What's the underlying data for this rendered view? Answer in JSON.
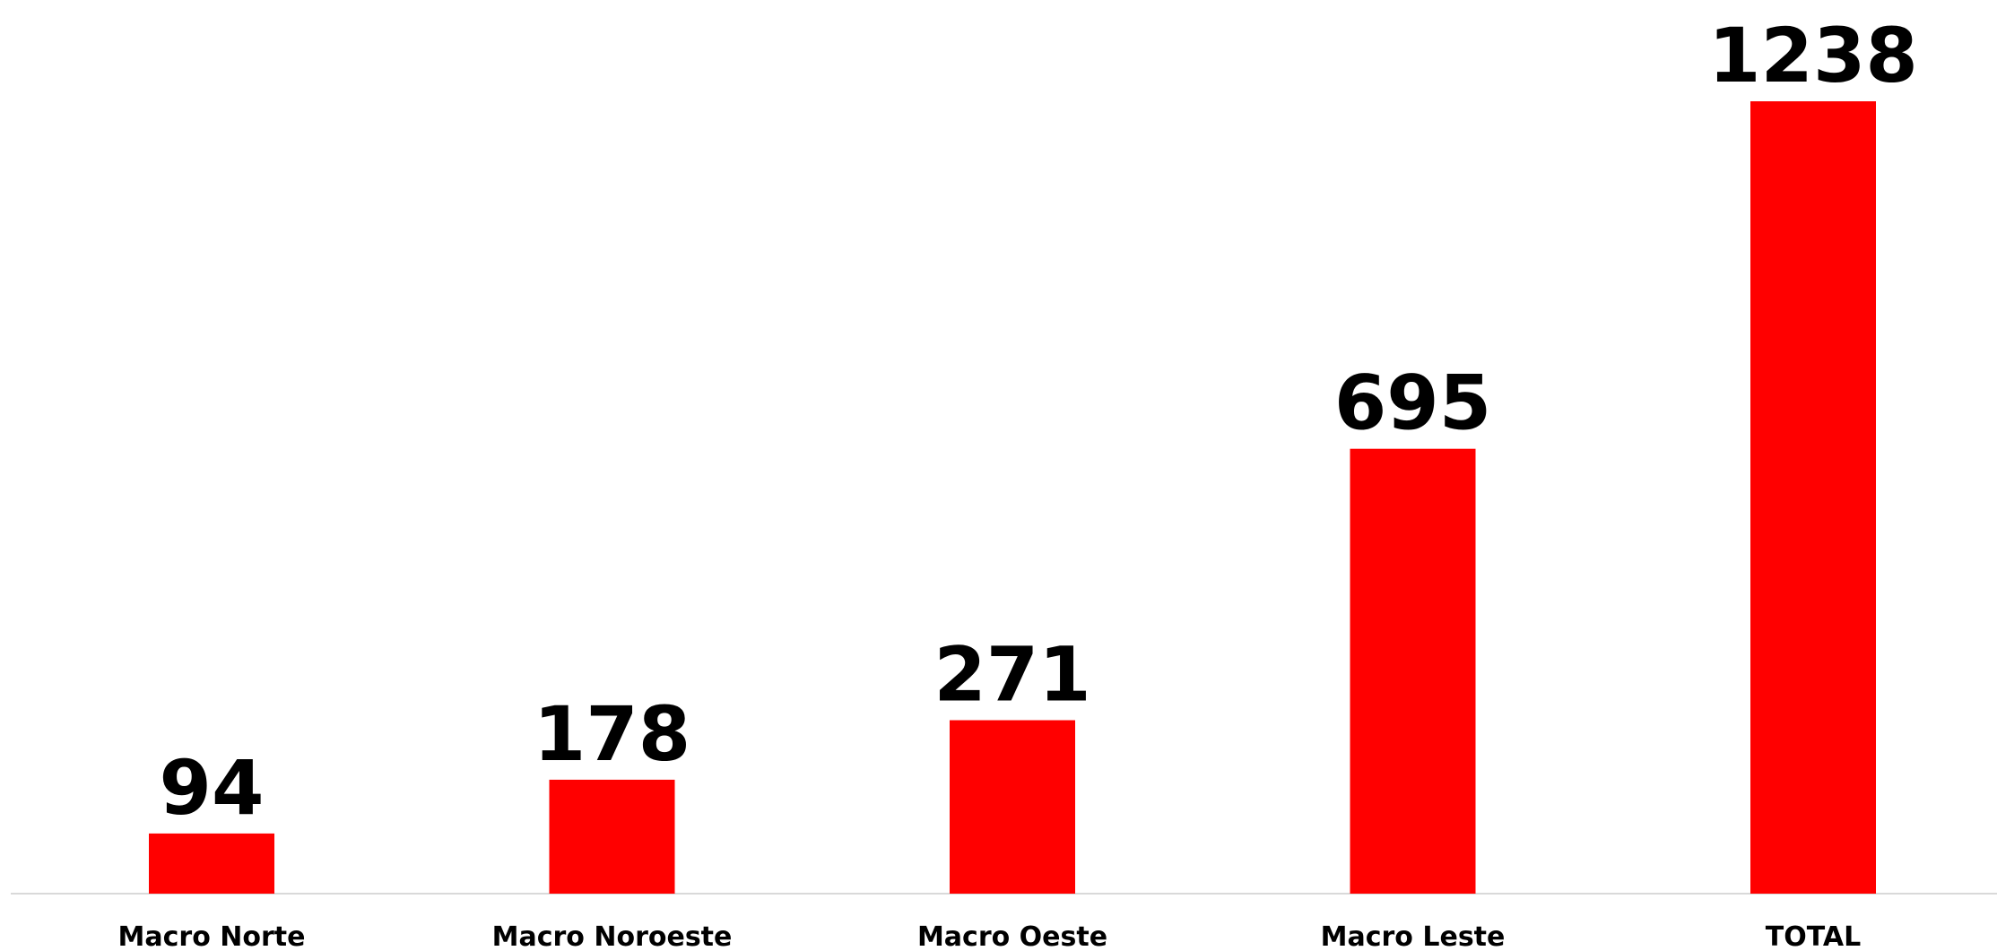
{
  "chart_data": {
    "type": "bar",
    "title": "",
    "xlabel": "",
    "ylabel": "",
    "categories": [
      "Macro Norte",
      "Macro Noroeste",
      "Macro Oeste",
      "Macro Leste",
      "TOTAL"
    ],
    "values": [
      94,
      178,
      271,
      695,
      1238
    ],
    "data_labels": [
      "94",
      "178",
      "271",
      "695",
      "1238"
    ],
    "ylim": [
      0,
      1238
    ],
    "grid": false,
    "legend": "none",
    "bar_color": "#ff0000",
    "axis_color": "#d9d9d9"
  }
}
